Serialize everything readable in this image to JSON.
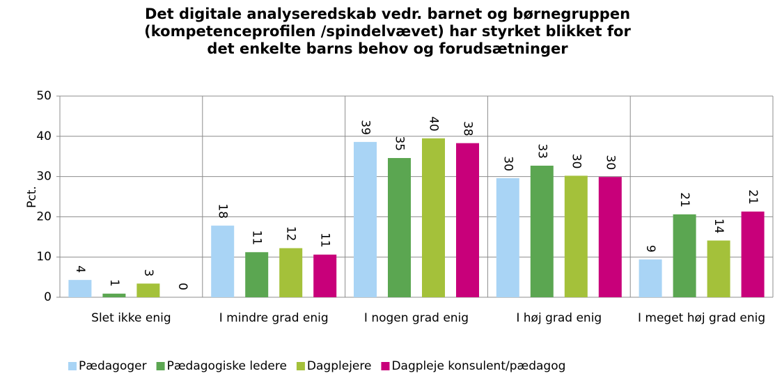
{
  "chart_data": {
    "type": "bar",
    "title": "Det digitale analyseredskab vedr. barnet og børnegruppen (kompetenceprofilen /spindelvævet) har styrket blikket for det enkelte barns behov og forudsætninger",
    "y_label": "Pct.",
    "categories": [
      "Slet ikke enig",
      "I mindre grad enig",
      "I nogen grad enig",
      "I høj grad enig",
      "I meget høj grad enig"
    ],
    "series": [
      {
        "name": "Pædagoger",
        "color": "#a9d4f5",
        "values": [
          4.3,
          17.8,
          38.6,
          29.6,
          9.4
        ],
        "value_labels": [
          "4",
          "18",
          "39",
          "30",
          "9"
        ]
      },
      {
        "name": "Pædagogiske ledere",
        "color": "#5ba651",
        "values": [
          0.9,
          11.2,
          34.6,
          32.7,
          20.6
        ],
        "value_labels": [
          "1",
          "11",
          "35",
          "33",
          "21"
        ]
      },
      {
        "name": "Dagplejere",
        "color": "#a4c13a",
        "values": [
          3.4,
          12.2,
          39.5,
          30.2,
          14.1
        ],
        "value_labels": [
          "3",
          "12",
          "40",
          "30",
          "14"
        ]
      },
      {
        "name": "Dagpleje konsulent/pædagog",
        "color": "#c8007a",
        "values": [
          0,
          10.6,
          38.3,
          29.9,
          21.3
        ],
        "value_labels": [
          "0",
          "11",
          "38",
          "30",
          "21"
        ]
      }
    ],
    "ylim": [
      0,
      50
    ],
    "yticks": [
      0,
      10,
      20,
      30,
      40,
      50
    ],
    "grid": true,
    "legend": "bottom"
  }
}
